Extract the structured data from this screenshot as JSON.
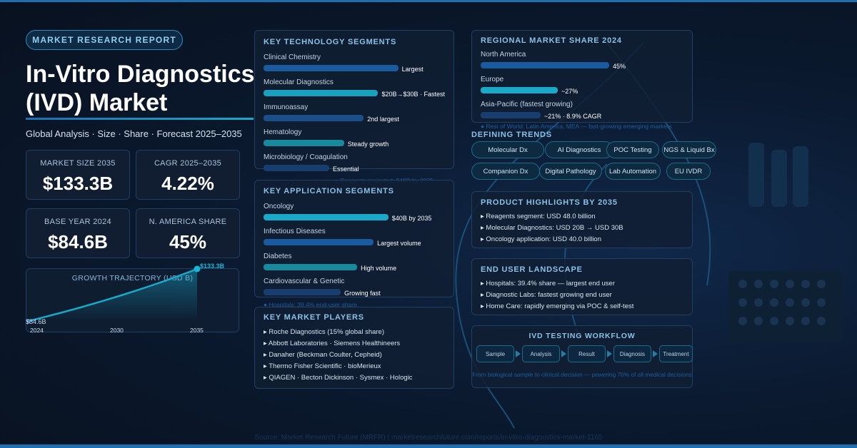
{
  "tag": "MARKET RESEARCH REPORT",
  "title": [
    "In-Vitro Diagnostics",
    "(IVD) Market"
  ],
  "subtitle": "Global Analysis · Size · Share · Forecast 2025–2035",
  "stats": [
    {
      "label": "MARKET SIZE 2035",
      "value": "$133.3B"
    },
    {
      "label": "CAGR 2025–2035",
      "value": "4.22%"
    },
    {
      "label": "BASE YEAR 2024",
      "value": "$84.6B"
    },
    {
      "label": "N. AMERICA SHARE",
      "value": "45%"
    }
  ],
  "chart_data": {
    "type": "area",
    "title": "GROWTH TRAJECTORY (USD B)",
    "x": [
      2024,
      2035
    ],
    "y": [
      84.6,
      133.3
    ],
    "data_labels": [
      "$84.6B",
      "$133.3B"
    ],
    "tick_labels": [
      "2024",
      "2030",
      "2035"
    ],
    "color": "#19a9c9"
  },
  "tech": {
    "title": "KEY TECHNOLOGY SEGMENTS",
    "items": [
      {
        "name": "Clinical Chemistry",
        "note": "Largest",
        "fill": 0.82,
        "color": "#1a5a9e"
      },
      {
        "name": "Molecular Diagnostics",
        "note": "$20B→$30B · Fastest",
        "fill": 0.7,
        "color": "#19a2c0"
      },
      {
        "name": "Immunoassay",
        "note": "2nd largest",
        "fill": 0.61,
        "color": "#1a4f8a"
      },
      {
        "name": "Hematology",
        "note": "Steady growth",
        "fill": 0.49,
        "color": "#178a9e"
      },
      {
        "name": "Microbiology / Coagulation",
        "note": "Essential",
        "fill": 0.4,
        "color": "#183e70"
      }
    ],
    "footnote": "● Reagents projected: $48B by 2035"
  },
  "app": {
    "title": "KEY APPLICATION SEGMENTS",
    "items": [
      {
        "name": "Oncology",
        "note": "$40B by 2035",
        "fill": 0.76,
        "color": "#19a9c9"
      },
      {
        "name": "Infectious Diseases",
        "note": "Largest volume",
        "fill": 0.67,
        "color": "#1a5a9e"
      },
      {
        "name": "Diabetes",
        "note": "High volume",
        "fill": 0.57,
        "color": "#178a9e"
      },
      {
        "name": "Cardiovascular & Genetic",
        "note": "Growing fast",
        "fill": 0.47,
        "color": "#183e70"
      }
    ],
    "footnote": "● Hospitals: 39.4% end-user share"
  },
  "players": {
    "title": "KEY MARKET PLAYERS",
    "items": [
      "▸ Roche Diagnostics (15% global share)",
      "▸ Abbott Laboratories · Siemens Healthineers",
      "▸ Danaher (Beckman Coulter, Cepheid)",
      "▸ Thermo Fisher Scientific · bioMerieux",
      "▸ QIAGEN · Becton Dickinson · Sysmex · Hologic"
    ]
  },
  "regional": {
    "title": "REGIONAL MARKET SHARE 2024",
    "items": [
      {
        "name": "North America",
        "note": "45%",
        "fill": 0.45,
        "color": "#1a5a9e"
      },
      {
        "name": "Europe",
        "note": "~27%",
        "fill": 0.27,
        "color": "#19a9c9"
      },
      {
        "name": "Asia-Pacific (fastest growing)",
        "note": "~21% · 8.9% CAGR",
        "fill": 0.21,
        "color": "#183e70"
      }
    ],
    "footnote": "● Rest of World: Latin America, MEA — fast-growing emerging markets"
  },
  "trends": {
    "title": "DEFINING TRENDS",
    "items": [
      "Molecular Dx",
      "AI Diagnostics",
      "POC Testing",
      "NGS & Liquid Bx",
      "Companion Dx",
      "Digital Pathology",
      "Lab Automation",
      "EU IVDR"
    ]
  },
  "product": {
    "title": "PRODUCT HIGHLIGHTS BY 2035",
    "items": [
      "▸ Reagents segment: USD 48.0 billion",
      "▸ Molecular Diagnostics: USD 20B → USD 30B",
      "▸ Oncology application: USD 40.0 billion"
    ]
  },
  "enduser": {
    "title": "END USER LANDSCAPE",
    "items": [
      "▸ Hospitals: 39.4% share — largest end user",
      "▸ Diagnostic Labs: fastest growing end user",
      "▸ Home Care: rapidly emerging via POC & self-test"
    ]
  },
  "workflow": {
    "title": "IVD TESTING WORKFLOW",
    "steps": [
      "Sample",
      "Analysis",
      "Result",
      "Diagnosis",
      "Treatment"
    ],
    "caption": "From biological sample to clinical decision — powering 70% of all medical decisions"
  },
  "source": "Source: Market Research Future (MRFR) | marketresearchfuture.com/reports/in-vitro-diagnostics-market-1165"
}
